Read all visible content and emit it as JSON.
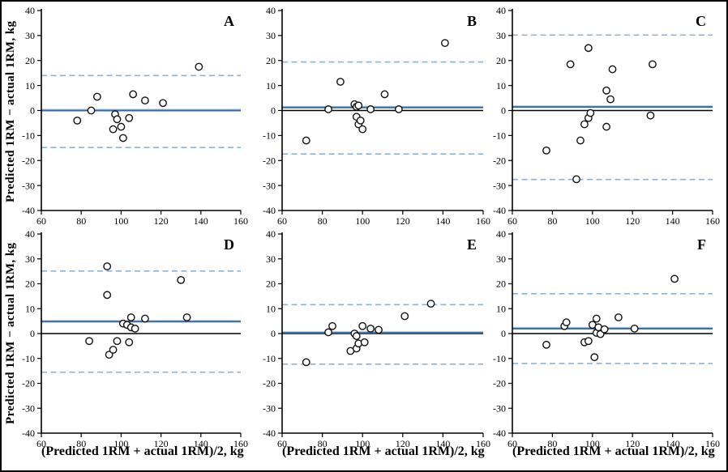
{
  "figure": {
    "y_axis_title": "Predicted 1RM − actual 1RM, kg",
    "x_axis_title": "(Predicted 1RM + actual 1RM)/2, kg",
    "colors": {
      "mean_line": "#34689f",
      "mean_line_halo": "#b9d1e8",
      "loa_line": "#8fb2d4",
      "zero_line": "#000000",
      "axis": "#000000",
      "marker_stroke": "#111111",
      "marker_fill": "#ffffff",
      "background": "#ffffff",
      "frame": "#000000"
    }
  },
  "chart_data": [
    {
      "type": "scatter",
      "label": "A",
      "xlim": [
        60,
        160
      ],
      "ylim": [
        -40,
        40
      ],
      "xticks": [
        60,
        80,
        100,
        120,
        140,
        160
      ],
      "yticks": [
        -40,
        -30,
        -20,
        -10,
        0,
        10,
        20,
        30,
        40
      ],
      "mean": 0,
      "upper_loa": 14.0,
      "lower_loa": -14.8,
      "x": [
        78,
        85,
        88,
        96,
        97,
        98,
        100,
        101,
        104,
        106,
        112,
        121,
        139
      ],
      "y": [
        -4,
        0,
        5.5,
        -7.5,
        -1.5,
        -3.5,
        -6.5,
        -11,
        -3,
        6.5,
        4,
        3,
        17.5
      ]
    },
    {
      "type": "scatter",
      "label": "B",
      "xlim": [
        60,
        160
      ],
      "ylim": [
        -40,
        40
      ],
      "xticks": [
        60,
        80,
        100,
        120,
        140,
        160
      ],
      "yticks": [
        -40,
        -30,
        -20,
        -10,
        0,
        10,
        20,
        30,
        40
      ],
      "mean": 1.2,
      "upper_loa": 19.4,
      "lower_loa": -17.4,
      "x": [
        72,
        83,
        89,
        96,
        97,
        97,
        98,
        98,
        99,
        100,
        104,
        111,
        118,
        141
      ],
      "y": [
        -12,
        0.5,
        11.5,
        2.5,
        1.5,
        -2.5,
        2,
        -5.5,
        -4,
        -7.5,
        0.5,
        6.5,
        0.5,
        27
      ]
    },
    {
      "type": "scatter",
      "label": "C",
      "xlim": [
        60,
        160
      ],
      "ylim": [
        -40,
        40
      ],
      "xticks": [
        60,
        80,
        100,
        120,
        140,
        160
      ],
      "yticks": [
        -40,
        -30,
        -20,
        -10,
        0,
        10,
        20,
        30,
        40
      ],
      "mean": 1.4,
      "upper_loa": 30.2,
      "lower_loa": -27.6,
      "x": [
        77,
        89,
        92,
        94,
        96,
        98,
        98,
        99,
        107,
        107,
        109,
        110,
        129,
        130
      ],
      "y": [
        -16,
        18.5,
        -27.5,
        -12,
        -5.5,
        25,
        -3,
        -1,
        -6.5,
        8,
        4.5,
        16.5,
        -2,
        18.5
      ]
    },
    {
      "type": "scatter",
      "label": "D",
      "xlim": [
        60,
        160
      ],
      "ylim": [
        -40,
        40
      ],
      "xticks": [
        60,
        80,
        100,
        120,
        140,
        160
      ],
      "yticks": [
        -40,
        -30,
        -20,
        -10,
        0,
        10,
        20,
        30,
        40
      ],
      "mean": 4.8,
      "upper_loa": 25.1,
      "lower_loa": -15.5,
      "x": [
        84,
        93,
        93,
        94,
        96,
        98,
        101,
        103,
        104,
        105,
        105,
        107,
        112,
        130,
        133
      ],
      "y": [
        -3,
        27,
        15.5,
        -8.5,
        -6.5,
        -3,
        4,
        3.5,
        -3.5,
        6.5,
        2.5,
        2,
        6,
        21.5,
        6.5
      ]
    },
    {
      "type": "scatter",
      "label": "E",
      "xlim": [
        60,
        160
      ],
      "ylim": [
        -40,
        40
      ],
      "xticks": [
        60,
        80,
        100,
        120,
        140,
        160
      ],
      "yticks": [
        -40,
        -30,
        -20,
        -10,
        0,
        10,
        20,
        30,
        40
      ],
      "mean": 0.3,
      "upper_loa": 11.6,
      "lower_loa": -12.3,
      "x": [
        72,
        83,
        85,
        94,
        96,
        97,
        97,
        98,
        100,
        101,
        104,
        108,
        121,
        134
      ],
      "y": [
        -11.5,
        0.5,
        3,
        -7,
        0,
        -1,
        -6,
        -4,
        3,
        -3.5,
        2,
        1.5,
        7,
        12
      ]
    },
    {
      "type": "scatter",
      "label": "F",
      "xlim": [
        60,
        160
      ],
      "ylim": [
        -40,
        40
      ],
      "xticks": [
        60,
        80,
        100,
        120,
        140,
        160
      ],
      "yticks": [
        -40,
        -30,
        -20,
        -10,
        0,
        10,
        20,
        30,
        40
      ],
      "mean": 2.0,
      "upper_loa": 16.0,
      "lower_loa": -12.0,
      "x": [
        77,
        86,
        87,
        96,
        98,
        100,
        101,
        102,
        102,
        103,
        104,
        106,
        113,
        121,
        141
      ],
      "y": [
        -4.5,
        3,
        4.5,
        -3.5,
        -3,
        3.5,
        -9.5,
        6,
        0.3,
        2.5,
        -0.2,
        1.7,
        6.5,
        2,
        22
      ]
    }
  ]
}
